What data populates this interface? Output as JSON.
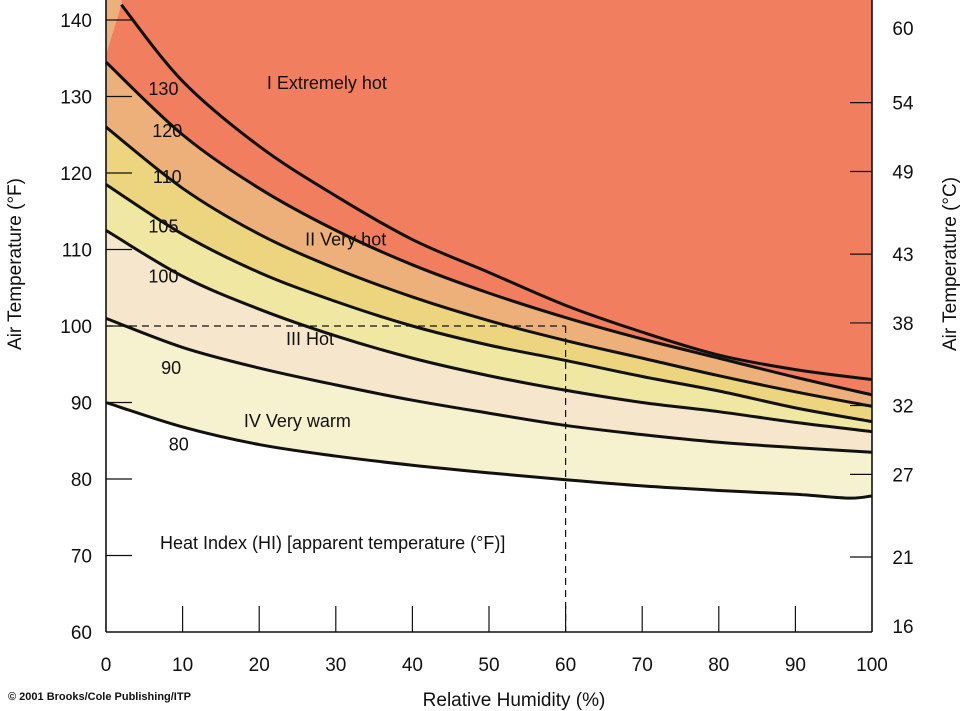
{
  "chart_data": {
    "type": "area",
    "xlabel": "Relative Humidity (%)",
    "ylabel": "Air Temperature (°F)",
    "ylabel_right": "Air Temperature (°C)",
    "xlim": [
      0,
      100
    ],
    "ylim": [
      60,
      142
    ],
    "x_ticks": [
      0,
      10,
      20,
      30,
      40,
      50,
      60,
      70,
      80,
      90,
      100
    ],
    "y_ticks_f": [
      60,
      70,
      80,
      90,
      100,
      110,
      120,
      130,
      140
    ],
    "y_ticks_c": [
      {
        "label": "16",
        "f": 60.8
      },
      {
        "label": "21",
        "f": 69.8
      },
      {
        "label": "27",
        "f": 80.6
      },
      {
        "label": "32",
        "f": 89.6
      },
      {
        "label": "38",
        "f": 100.4
      },
      {
        "label": "43",
        "f": 109.4
      },
      {
        "label": "49",
        "f": 120.2
      },
      {
        "label": "54",
        "f": 129.2
      },
      {
        "label": "60",
        "f": 140
      }
    ],
    "caption": "Heat Index (HI) [apparent temperature (°F)]",
    "copyright": "© 2001 Brooks/Cole Publishing/ITP",
    "reference": {
      "humidity": 60,
      "temperature": 100
    },
    "series": [
      {
        "name": "80",
        "label_at": [
          9.5,
          84.5
        ],
        "x": [
          0,
          10,
          20,
          30,
          40,
          50,
          60,
          70,
          80,
          90,
          97,
          100
        ],
        "y": [
          90,
          86.8,
          84.5,
          83,
          81.8,
          80.8,
          79.9,
          79.1,
          78.5,
          78,
          77.5,
          77.8
        ]
      },
      {
        "name": "90",
        "label_at": [
          8.5,
          94.5
        ],
        "x": [
          0,
          10,
          20,
          30,
          40,
          50,
          60,
          70,
          80,
          90,
          100
        ],
        "y": [
          101,
          97.2,
          94.5,
          92.3,
          90.3,
          88.6,
          87,
          85.8,
          84.8,
          84.1,
          83.5
        ]
      },
      {
        "name": "100",
        "label_at": [
          7.5,
          106.5
        ],
        "x": [
          0,
          10,
          20,
          30,
          40,
          50,
          60,
          70,
          80,
          90,
          100
        ],
        "y": [
          112.5,
          106.5,
          102.2,
          98.7,
          95.8,
          93.5,
          91.6,
          90,
          88.8,
          87.4,
          86.2
        ]
      },
      {
        "name": "105",
        "label_at": [
          7.5,
          113
        ],
        "x": [
          0,
          10,
          20,
          30,
          40,
          50,
          60,
          70,
          80,
          90,
          100
        ],
        "y": [
          118.5,
          112,
          107,
          103.2,
          100,
          97.5,
          95.5,
          93.4,
          91.5,
          89.3,
          87.5
        ]
      },
      {
        "name": "110",
        "label_at": [
          8,
          119.5
        ],
        "x": [
          0,
          10,
          20,
          30,
          40,
          50,
          60,
          70,
          80,
          90,
          100
        ],
        "y": [
          126,
          118,
          112,
          107.5,
          103.8,
          100.7,
          98.1,
          95.8,
          93.5,
          91.4,
          89.5
        ]
      },
      {
        "name": "120",
        "label_at": [
          8,
          125.5
        ],
        "x": [
          0,
          10,
          20,
          30,
          40,
          50,
          60,
          70,
          80,
          90,
          100
        ],
        "y": [
          134.5,
          125,
          118,
          112.5,
          108,
          104.3,
          101.1,
          98.3,
          95.8,
          93.3,
          91
        ]
      },
      {
        "name": "130",
        "label_at": [
          7.5,
          131
        ],
        "x": [
          2,
          10,
          20,
          30,
          40,
          50,
          60,
          70,
          80,
          90,
          100
        ],
        "y": [
          142,
          132,
          123.5,
          117,
          111.3,
          107,
          102.7,
          99.2,
          96.2,
          94.3,
          93
        ]
      }
    ],
    "zones": [
      {
        "label": "I   Extremely hot",
        "color": "#f07e5f",
        "label_at": [
          21,
          131
        ]
      },
      {
        "label": "II  Very hot",
        "color": "#eeaf77",
        "label_at": [
          26,
          110.5
        ]
      },
      {
        "label": "III  Hot",
        "color": "#ecd87e",
        "label_at": [
          23.5,
          97.5
        ]
      },
      {
        "label": "IV  Very warm",
        "color": "#f8f2cf",
        "label_at": [
          18,
          86.8
        ]
      }
    ],
    "band_colors": [
      "#fcfce8",
      "#f6f1cf",
      "#f6e6cb",
      "#efe7a2",
      "#ecd57e",
      "#eeb07a",
      "#f07e5f"
    ]
  }
}
